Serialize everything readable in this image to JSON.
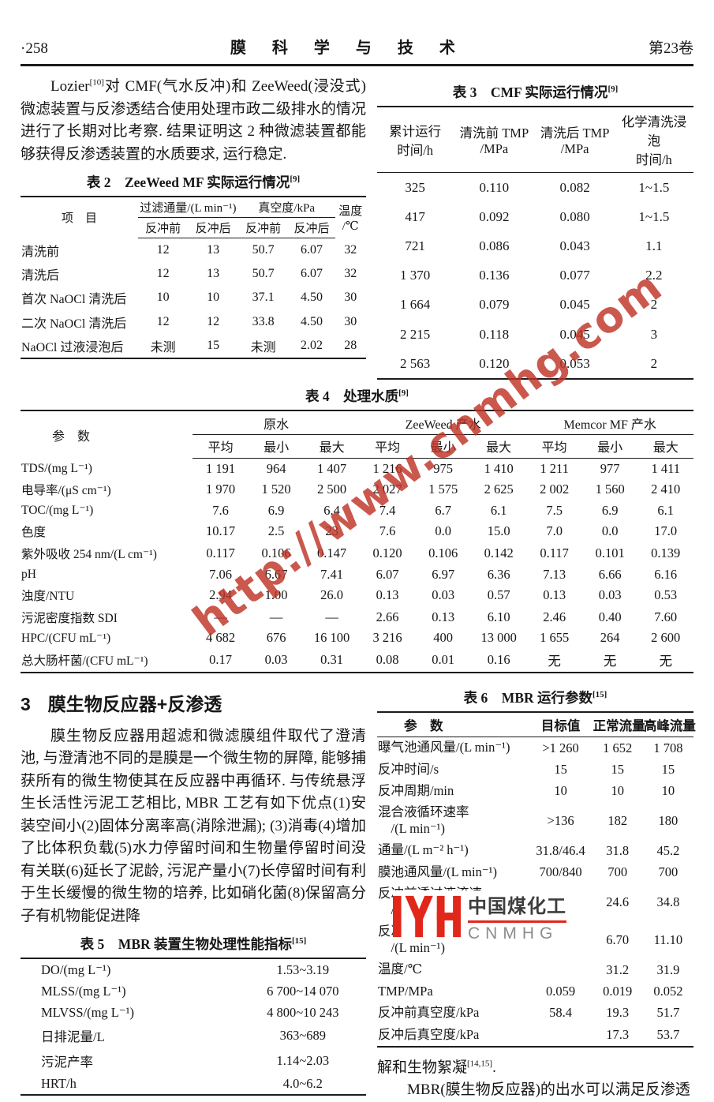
{
  "header": {
    "page_number": "·258",
    "journal_title": "膜 科 学 与 技 术",
    "volume": "第23卷"
  },
  "intro": {
    "lead": "Lozier",
    "ref": "[10]",
    "text": "对 CMF(气水反冲)和 ZeeWeed(浸没式)微滤装置与反渗透结合使用处理市政二级排水的情况进行了长期对比考察. 结果证明这 2 种微滤装置都能够获得反渗透装置的水质要求, 运行稳定."
  },
  "table2": {
    "title": "表 2　ZeeWeed MF 实际运行情况",
    "ref": "[9]",
    "col_item": "项　目",
    "grp_flux": "过滤通量/(L min⁻¹)",
    "grp_vacuum": "真空度/kPa",
    "col_temp": "温度\n/℃",
    "sub": [
      "反冲前",
      "反冲后",
      "反冲前",
      "反冲后"
    ],
    "rows": [
      [
        "清洗前",
        "12",
        "13",
        "50.7",
        "6.07",
        "32"
      ],
      [
        "清洗后",
        "12",
        "13",
        "50.7",
        "6.07",
        "32"
      ],
      [
        "首次 NaOCl 清洗后",
        "10",
        "10",
        "37.1",
        "4.50",
        "30"
      ],
      [
        "二次 NaOCl 清洗后",
        "12",
        "12",
        "33.8",
        "4.50",
        "30"
      ],
      [
        "NaOCl 过液浸泡后",
        "未测",
        "15",
        "未测",
        "2.02",
        "28"
      ]
    ]
  },
  "table3": {
    "title": "表 3　CMF 实际运行情况",
    "ref": "[9]",
    "cols": [
      "累计运行\n时间/h",
      "清洗前 TMP\n/MPa",
      "清洗后 TMP\n/MPa",
      "化学清洗浸泡\n时间/h"
    ],
    "rows": [
      [
        "325",
        "0.110",
        "0.082",
        "1~1.5"
      ],
      [
        "417",
        "0.092",
        "0.080",
        "1~1.5"
      ],
      [
        "721",
        "0.086",
        "0.043",
        "1.1"
      ],
      [
        "1 370",
        "0.136",
        "0.077",
        "2.2"
      ],
      [
        "1 664",
        "0.079",
        "0.045",
        "2"
      ],
      [
        "2 215",
        "0.118",
        "0.045",
        "3"
      ],
      [
        "2 563",
        "0.120",
        "0.053",
        "2"
      ]
    ]
  },
  "table4": {
    "title": "表 4　处理水质",
    "ref": "[9]",
    "param_header": "参　数",
    "groups": [
      "原水",
      "ZeeWeed 产水",
      "Memcor MF 产水"
    ],
    "subheaders": [
      "平均",
      "最小",
      "最大"
    ],
    "rows": [
      [
        "TDS/(mg L⁻¹)",
        "1 191",
        "964",
        "1 407",
        "1 216",
        "975",
        "1 410",
        "1 211",
        "977",
        "1 411"
      ],
      [
        "电导率/(μS cm⁻¹)",
        "1 970",
        "1 520",
        "2 500",
        "2 027",
        "1 575",
        "2 625",
        "2 002",
        "1 560",
        "2 410"
      ],
      [
        "TOC/(mg L⁻¹)",
        "7.6",
        "6.9",
        "6.4",
        "7.4",
        "6.7",
        "6.1",
        "7.5",
        "6.9",
        "6.1"
      ],
      [
        "色度",
        "10.17",
        "2.5",
        "23",
        "7.6",
        "0.0",
        "15.0",
        "7.0",
        "0.0",
        "17.0"
      ],
      [
        "紫外吸收 254 nm/(L cm⁻¹)",
        "0.117",
        "0.106",
        "0.147",
        "0.120",
        "0.106",
        "0.142",
        "0.117",
        "0.101",
        "0.139"
      ],
      [
        "pH",
        "7.06",
        "6.67",
        "7.41",
        "6.07",
        "6.97",
        "6.36",
        "7.13",
        "6.66",
        "6.16"
      ],
      [
        "浊度/NTU",
        "2.94",
        "1.00",
        "26.0",
        "0.13",
        "0.03",
        "0.57",
        "0.13",
        "0.03",
        "0.53"
      ],
      [
        "污泥密度指数 SDI",
        "—",
        "—",
        "—",
        "2.66",
        "0.13",
        "6.10",
        "2.46",
        "0.40",
        "7.60"
      ],
      [
        "HPC/(CFU mL⁻¹)",
        "4 682",
        "676",
        "16 100",
        "3 216",
        "400",
        "13 000",
        "1 655",
        "264",
        "2 600"
      ],
      [
        "总大肠杆菌/(CFU mL⁻¹)",
        "0.17",
        "0.03",
        "0.31",
        "0.08",
        "0.01",
        "0.16",
        "无",
        "无",
        "无"
      ]
    ]
  },
  "section3": {
    "number": "3",
    "title": "膜生物反应器+反渗透",
    "text": "膜生物反应器用超滤和微滤膜组件取代了澄清池, 与澄清池不同的是膜是一个微生物的屏障, 能够捕获所有的微生物使其在反应器中再循环. 与传统悬浮生长活性污泥工艺相比, MBR 工艺有如下优点(1)安装空间小(2)固体分离率高(消除泄漏); (3)消毒(4)增加了比体积负载(5)水力停留时间和生物量停留时间没有关联(6)延长了泥龄, 污泥产量小(7)长停留时间有利于生长缓慢的微生物的培养, 比如硝化菌(8)保留高分子有机物能促进降"
  },
  "table5": {
    "title": "表 5　MBR 装置生物处理性能指标",
    "ref": "[15]",
    "rows": [
      [
        "DO/(mg L⁻¹)",
        "1.53~3.19"
      ],
      [
        "MLSS/(mg L⁻¹)",
        "6 700~14 070"
      ],
      [
        "MLVSS/(mg L⁻¹)",
        "4 800~10 243"
      ],
      [
        "日排泥量/L",
        "363~689"
      ],
      [
        "污泥产率",
        "1.14~2.03"
      ],
      [
        "HRT/h",
        "4.0~6.2"
      ]
    ]
  },
  "table6": {
    "title": "表 6　MBR 运行参数",
    "ref": "[15]",
    "cols": [
      "参　数",
      "目标值",
      "正常流量",
      "高峰流量"
    ],
    "rows": [
      [
        "曝气池通风量/(L min⁻¹)",
        ">1 260",
        "1 652",
        "1 708"
      ],
      [
        "反冲时间/s",
        "15",
        "15",
        "15"
      ],
      [
        "反冲周期/min",
        "10",
        "10",
        "10"
      ],
      [
        "混合液循环速率\n　/(L min⁻¹)",
        ">136",
        "182",
        "180"
      ],
      [
        "通量/(L m⁻² h⁻¹)",
        "31.8/46.4",
        "31.8",
        "45.2"
      ],
      [
        "膜池通风量/(L min⁻¹)",
        "700/840",
        "700",
        "700"
      ],
      [
        "反冲前透过液流速\n　/(L min⁻¹)",
        "24.6/40",
        "24.6",
        "34.8"
      ],
      [
        "反冲后透过液流速\n　/(L min⁻¹)",
        "",
        "6.70",
        "11.10"
      ],
      [
        "温度/℃",
        "",
        "31.2",
        "31.9"
      ],
      [
        "TMP/MPa",
        "0.059",
        "0.019",
        "0.052"
      ],
      [
        "反冲前真空度/kPa",
        "58.4",
        "19.3",
        "51.7"
      ],
      [
        "反冲后真空度/kPa",
        "",
        "17.3",
        "53.7"
      ]
    ]
  },
  "closing": {
    "line1": "解和生物絮凝",
    "ref": "[14,15]",
    "period": ".",
    "line2": "MBR(膜生物反应器)的出水可以满足反渗透"
  },
  "watermark": {
    "url": "http://www.cnmhg.com",
    "logo_cn": "中国煤化工",
    "logo_en": "CNMHG",
    "accent_red": "#c03427",
    "logo_red": "#e1271a"
  }
}
